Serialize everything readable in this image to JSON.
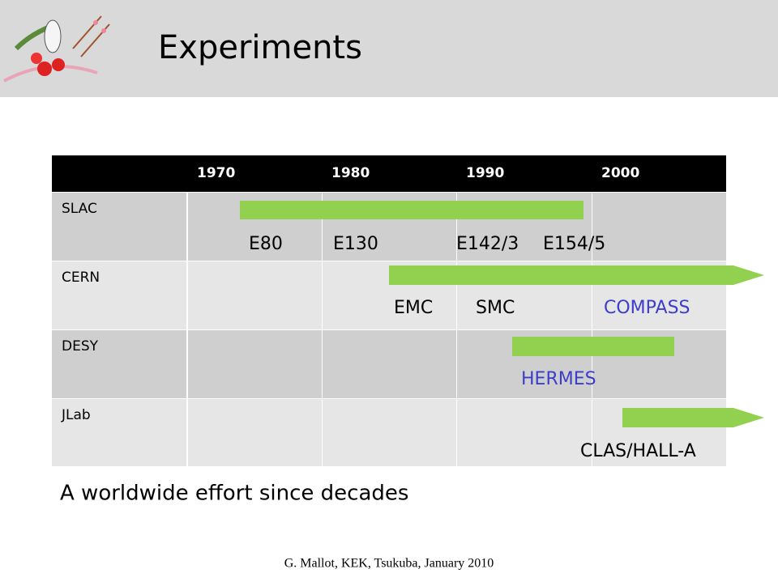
{
  "header": {
    "title": "Experiments"
  },
  "table": {
    "columns": [
      "1970",
      "1980",
      "1990",
      "2000"
    ],
    "rows": [
      {
        "label": "SLAC",
        "experiments": [
          "E80",
          "E130",
          "E142/3",
          "E154/5"
        ]
      },
      {
        "label": "CERN",
        "experiments": [
          "EMC",
          "SMC",
          "COMPASS"
        ]
      },
      {
        "label": "DESY",
        "experiments": [
          "HERMES"
        ]
      },
      {
        "label": "JLab",
        "experiments": [
          "CLAS/HALL-A"
        ]
      }
    ]
  },
  "summary": "A worldwide effort since decades",
  "footer": "G. Mallot, KEK, Tsukuba, January 2010"
}
